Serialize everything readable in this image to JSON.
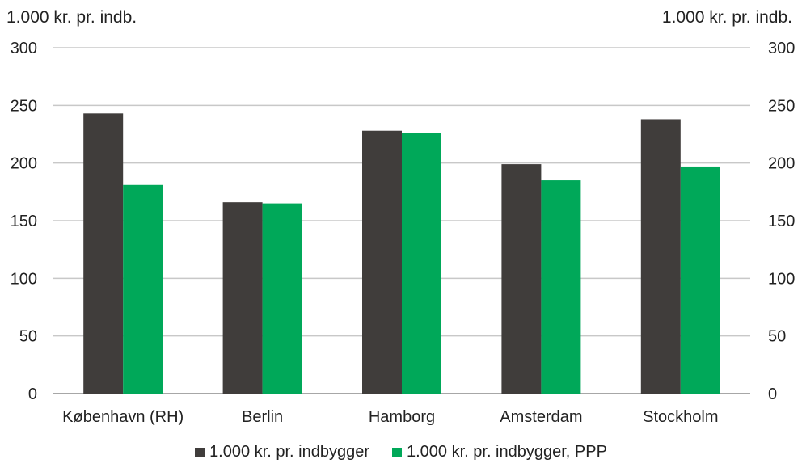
{
  "chart_data": {
    "type": "bar",
    "title": "",
    "y_unit_left": "1.000 kr. pr. indb.",
    "y_unit_right": "1.000 kr. pr. indb.",
    "categories": [
      "København (RH)",
      "Berlin",
      "Hamborg",
      "Amsterdam",
      "Stockholm"
    ],
    "series": [
      {
        "name": "1.000 kr. pr. indbygger",
        "color": "#403d3b",
        "values": [
          243,
          166,
          228,
          199,
          238
        ]
      },
      {
        "name": "1.000 kr. pr. indbygger, PPP",
        "color": "#00a859",
        "values": [
          181,
          165,
          226,
          185,
          197
        ]
      }
    ],
    "ylim": [
      0,
      300
    ],
    "yticks": [
      0,
      50,
      100,
      150,
      200,
      250,
      300
    ],
    "grid": true,
    "dual_axis_mirrored": true,
    "legend_position": "bottom"
  }
}
